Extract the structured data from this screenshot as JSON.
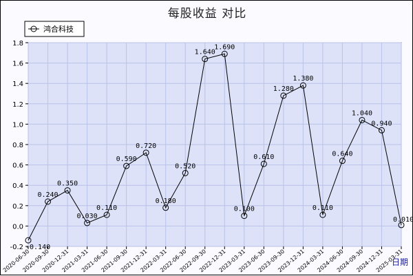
{
  "chart_data": {
    "type": "line",
    "title": "每股收益  对比",
    "xlabel": "日期",
    "ylabel": "",
    "ylim": [
      -0.2,
      1.8
    ],
    "yticks": [
      "-0.2",
      "0.0",
      "0.2",
      "0.4",
      "0.6",
      "0.8",
      "1.0",
      "1.2",
      "1.4",
      "1.6",
      "1.8"
    ],
    "grid": true,
    "legend_position": "top-left",
    "line_color": "#000000",
    "plot_bg": "#dde2f8",
    "grid_color": "#b9c2e8",
    "categories": [
      "2020-06-30",
      "2020-09-30",
      "2020-12-31",
      "2021-03-31",
      "2021-06-30",
      "2021-09-30",
      "2021-12-31",
      "2022-03-31",
      "2022-06-30",
      "2022-09-30",
      "2022-12-31",
      "2023-03-31",
      "2023-06-30",
      "2023-09-30",
      "2023-12-31",
      "2024-03-31",
      "2024-06-30",
      "2024-09-30",
      "2024-12-31",
      "2025-03-31"
    ],
    "series": [
      {
        "name": "鸿合科技",
        "values": [
          -0.14,
          0.24,
          0.35,
          0.03,
          0.11,
          0.59,
          0.72,
          0.18,
          0.52,
          1.64,
          1.69,
          0.1,
          0.61,
          1.28,
          1.38,
          0.11,
          0.64,
          1.04,
          0.94,
          0.01
        ],
        "labels": [
          "-0.140",
          "0.240",
          "0.350",
          "0.030",
          "0.110",
          "0.590",
          "0.720",
          "0.180",
          "0.520",
          "1.640",
          "1.690",
          "0.100",
          "0.610",
          "1.280",
          "1.380",
          "0.110",
          "0.640",
          "1.040",
          "0.940",
          "0.010"
        ]
      }
    ]
  }
}
